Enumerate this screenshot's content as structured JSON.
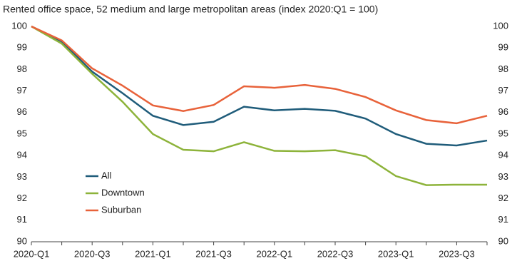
{
  "chart_data": {
    "type": "line",
    "title": "Rented office space, 52 medium and large metropolitan areas (index 2020:Q1 = 100)",
    "categories": [
      "2020-Q1",
      null,
      "2020-Q3",
      null,
      "2021-Q1",
      null,
      "2021-Q3",
      null,
      "2022-Q1",
      null,
      "2022-Q3",
      null,
      "2023-Q1",
      null,
      "2023-Q3",
      null
    ],
    "series": [
      {
        "name": "All",
        "color": "#1f5c7a",
        "values": [
          100,
          99.3,
          97.9,
          96.9,
          95.85,
          95.42,
          95.57,
          96.27,
          96.1,
          96.17,
          96.08,
          95.72,
          95.0,
          94.55,
          94.47,
          94.7
        ]
      },
      {
        "name": "Downtown",
        "color": "#8db33a",
        "values": [
          100,
          99.2,
          97.8,
          96.5,
          95.0,
          94.27,
          94.2,
          94.62,
          94.22,
          94.2,
          94.25,
          93.97,
          93.05,
          92.63,
          92.65,
          92.65
        ]
      },
      {
        "name": "Suburban",
        "color": "#e8623a",
        "values": [
          100,
          99.35,
          98.05,
          97.25,
          96.33,
          96.07,
          96.35,
          97.22,
          97.15,
          97.28,
          97.1,
          96.72,
          96.1,
          95.65,
          95.5,
          95.85
        ]
      }
    ],
    "ylim": [
      90,
      100
    ],
    "yticks": [
      90,
      91,
      92,
      93,
      94,
      95,
      96,
      97,
      98,
      99,
      100
    ],
    "legend": "lower-left"
  }
}
